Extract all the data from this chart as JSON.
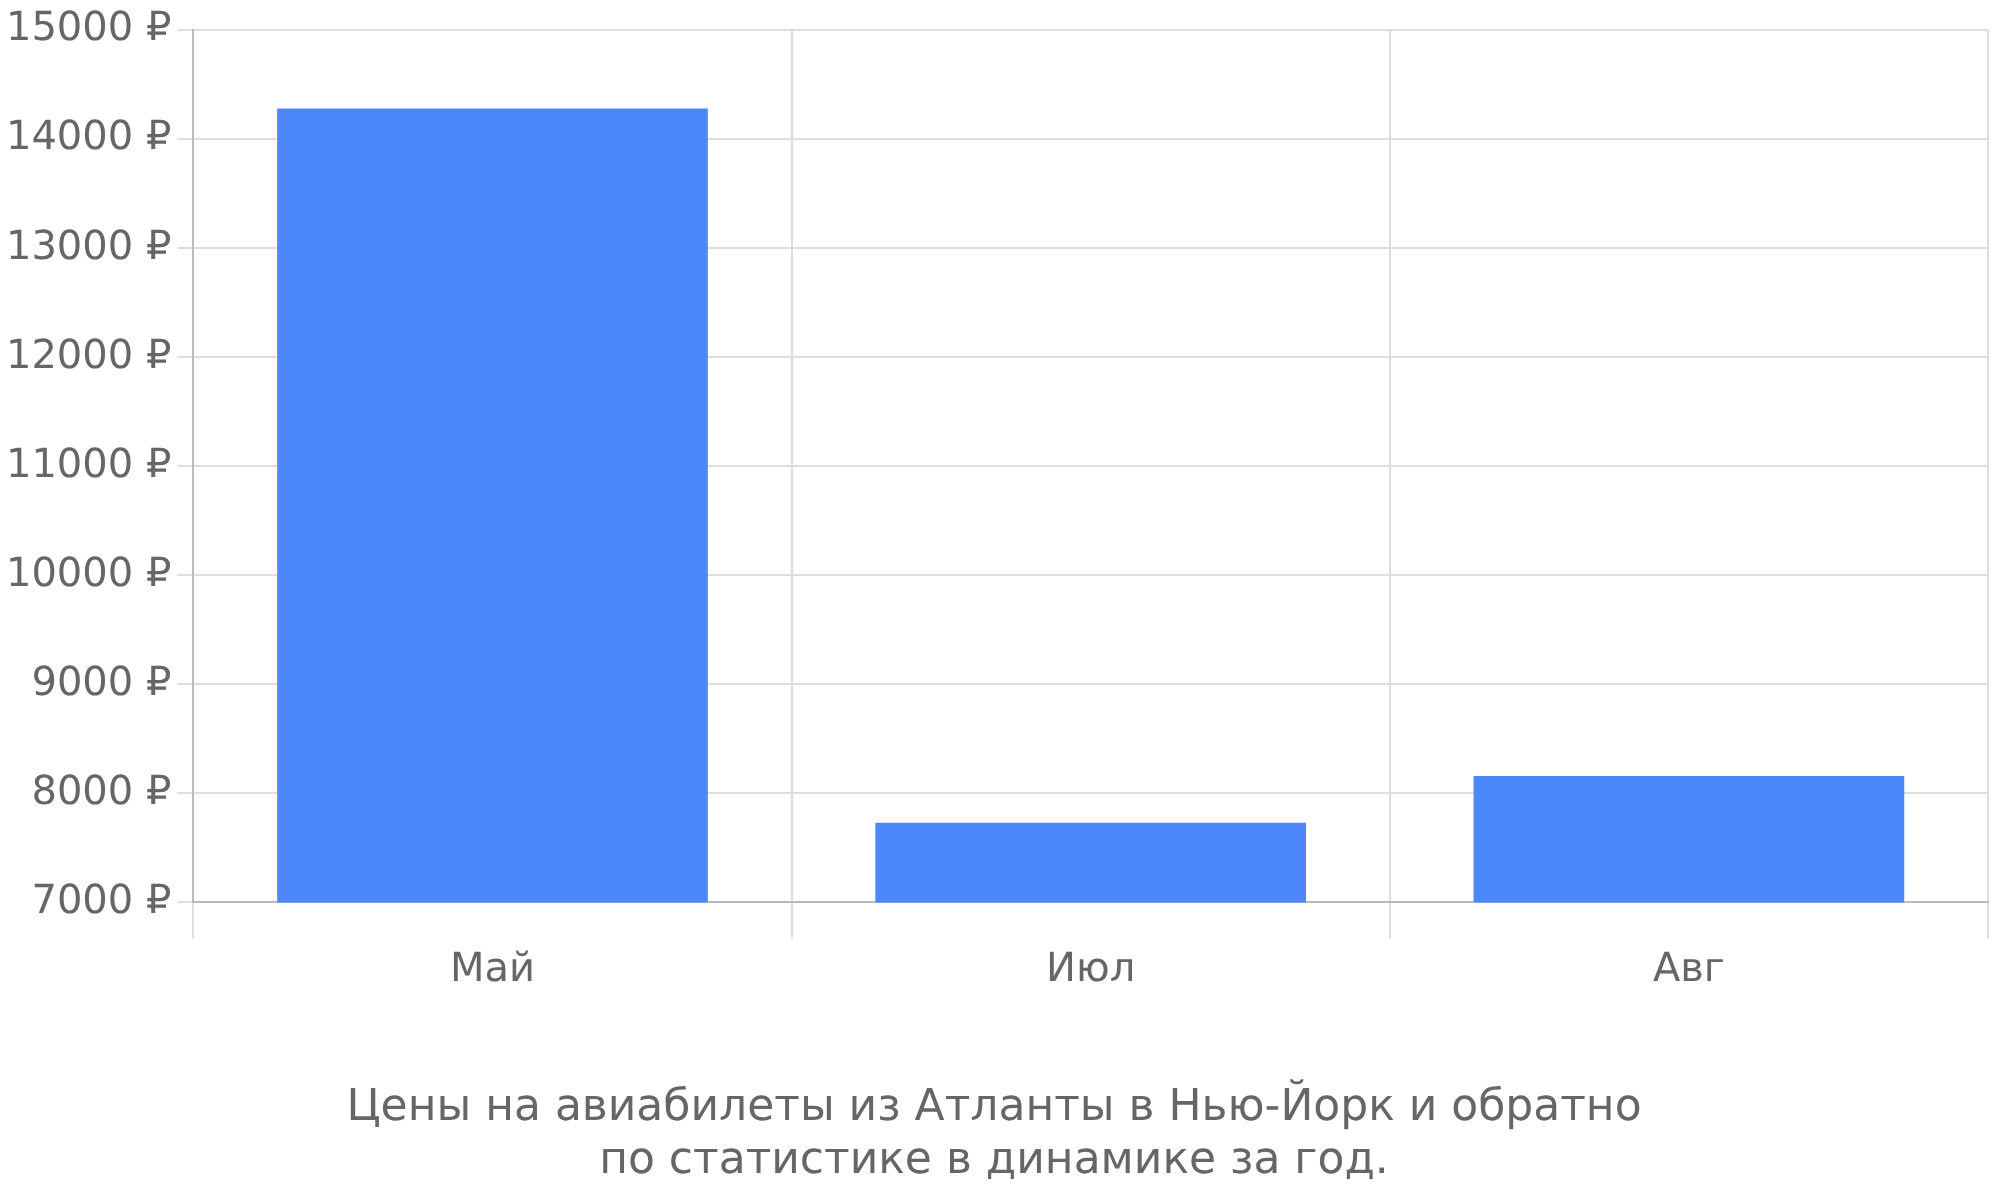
{
  "chart_data": {
    "type": "bar",
    "title": "Цены на авиабилеты из Атланты в Нью-Йорк и обратно\nпо статистике в динамике за год.",
    "categories": [
      "Май",
      "Июл",
      "Авг"
    ],
    "values": [
      14280,
      7730,
      8160
    ],
    "color": "#4d88fb",
    "ylim": [
      7000,
      15000
    ],
    "yticks": [
      {
        "value": 7000,
        "label": "7000 ₽"
      },
      {
        "value": 8000,
        "label": "8000 ₽"
      },
      {
        "value": 9000,
        "label": "9000 ₽"
      },
      {
        "value": 10000,
        "label": "10000 ₽"
      },
      {
        "value": 11000,
        "label": "11000 ₽"
      },
      {
        "value": 12000,
        "label": "12000 ₽"
      },
      {
        "value": 13000,
        "label": "13000 ₽"
      },
      {
        "value": 14000,
        "label": "14000 ₽"
      },
      {
        "value": 15000,
        "label": "15000 ₽"
      }
    ],
    "grid": true,
    "legend": false
  }
}
